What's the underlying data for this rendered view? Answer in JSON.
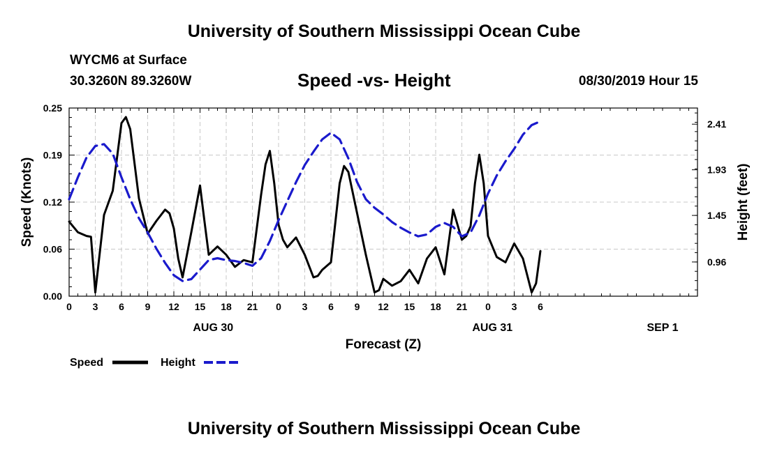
{
  "page": {
    "title_top": "University of Southern Mississippi Ocean Cube",
    "title_bottom": "University of Southern Mississippi Ocean Cube",
    "station": "WYCM6 at Surface",
    "location": "30.3260N 89.3260W",
    "chart_title": "Speed -vs- Height",
    "run_time": "08/30/2019 Hour 15"
  },
  "chart_data": {
    "type": "line",
    "title": "Speed -vs- Height",
    "xlabel": "Forecast (Z)",
    "ylabel": "Speed (Knots)",
    "y2label": "Height (feet)",
    "x_range": [
      0,
      72
    ],
    "ylim": [
      0,
      0.25
    ],
    "y2lim": [
      0.6,
      2.58
    ],
    "grid": true,
    "legend_position": "bottom-left",
    "x_tick_labels": [
      "0",
      "3",
      "6",
      "9",
      "12",
      "15",
      "18",
      "21",
      "0",
      "3",
      "6",
      "9",
      "12",
      "15",
      "18",
      "21",
      "0",
      "3",
      "6"
    ],
    "date_labels": [
      {
        "x": 16.5,
        "label": "AUG 30"
      },
      {
        "x": 48.5,
        "label": "AUG 31"
      },
      {
        "x": 68,
        "label": "SEP 1"
      }
    ],
    "y_ticks": [
      {
        "value": 0,
        "label": "0.00"
      },
      {
        "value": 0.0625,
        "label": "0.06"
      },
      {
        "value": 0.125,
        "label": "0.12"
      },
      {
        "value": 0.1875,
        "label": "0.19"
      },
      {
        "value": 0.25,
        "label": "0.25"
      }
    ],
    "y2_ticks": [
      {
        "value": 0.96,
        "label": "0.96"
      },
      {
        "value": 1.45,
        "label": "1.45"
      },
      {
        "value": 1.93,
        "label": "1.93"
      },
      {
        "value": 2.41,
        "label": "2.41"
      }
    ],
    "legend": [
      {
        "name": "Speed",
        "color": "#000000",
        "style": "solid"
      },
      {
        "name": "Height",
        "color": "#1a1acc",
        "style": "dashed"
      }
    ],
    "series": [
      {
        "name": "Speed",
        "axis": "left",
        "color": "#000000",
        "points": [
          [
            0,
            0.099
          ],
          [
            1,
            0.085
          ],
          [
            2,
            0.08
          ],
          [
            2.5,
            0.079
          ],
          [
            3,
            0.005
          ],
          [
            4,
            0.108
          ],
          [
            5,
            0.14
          ],
          [
            6,
            0.23
          ],
          [
            6.5,
            0.238
          ],
          [
            7,
            0.222
          ],
          [
            8,
            0.13
          ],
          [
            9,
            0.083
          ],
          [
            10,
            0.1
          ],
          [
            11,
            0.115
          ],
          [
            11.5,
            0.11
          ],
          [
            12,
            0.09
          ],
          [
            12.5,
            0.05
          ],
          [
            13,
            0.025
          ],
          [
            14,
            0.085
          ],
          [
            15,
            0.147
          ],
          [
            15.5,
            0.1
          ],
          [
            16,
            0.055
          ],
          [
            17,
            0.066
          ],
          [
            18,
            0.055
          ],
          [
            19,
            0.039
          ],
          [
            20,
            0.048
          ],
          [
            21,
            0.045
          ],
          [
            22,
            0.135
          ],
          [
            22.5,
            0.175
          ],
          [
            23,
            0.193
          ],
          [
            23.5,
            0.15
          ],
          [
            24,
            0.095
          ],
          [
            24.5,
            0.075
          ],
          [
            25,
            0.065
          ],
          [
            26,
            0.078
          ],
          [
            27,
            0.055
          ],
          [
            28,
            0.025
          ],
          [
            28.5,
            0.027
          ],
          [
            29,
            0.035
          ],
          [
            30,
            0.045
          ],
          [
            31,
            0.15
          ],
          [
            31.5,
            0.173
          ],
          [
            32,
            0.165
          ],
          [
            33,
            0.11
          ],
          [
            34,
            0.055
          ],
          [
            35,
            0.005
          ],
          [
            35.5,
            0.008
          ],
          [
            36,
            0.023
          ],
          [
            37,
            0.014
          ],
          [
            38,
            0.02
          ],
          [
            39,
            0.035
          ],
          [
            40,
            0.017
          ],
          [
            41,
            0.05
          ],
          [
            42,
            0.065
          ],
          [
            43,
            0.029
          ],
          [
            44,
            0.115
          ],
          [
            45,
            0.075
          ],
          [
            45.5,
            0.08
          ],
          [
            46,
            0.093
          ],
          [
            46.5,
            0.15
          ],
          [
            47,
            0.188
          ],
          [
            47.5,
            0.15
          ],
          [
            48,
            0.08
          ],
          [
            49,
            0.052
          ],
          [
            50,
            0.045
          ],
          [
            51,
            0.07
          ],
          [
            52,
            0.05
          ],
          [
            53,
            0.005
          ],
          [
            53.5,
            0.017
          ],
          [
            54,
            0.06
          ]
        ]
      },
      {
        "name": "Height",
        "axis": "right",
        "color": "#1a1acc",
        "points": [
          [
            0,
            1.62
          ],
          [
            1,
            1.85
          ],
          [
            2,
            2.06
          ],
          [
            3,
            2.18
          ],
          [
            4,
            2.2
          ],
          [
            5,
            2.1
          ],
          [
            6,
            1.85
          ],
          [
            7,
            1.62
          ],
          [
            8,
            1.42
          ],
          [
            9,
            1.27
          ],
          [
            10,
            1.1
          ],
          [
            11,
            0.95
          ],
          [
            12,
            0.82
          ],
          [
            13,
            0.76
          ],
          [
            14,
            0.78
          ],
          [
            15,
            0.88
          ],
          [
            16,
            0.98
          ],
          [
            17,
            1.0
          ],
          [
            18,
            0.98
          ],
          [
            19,
            0.97
          ],
          [
            20,
            0.95
          ],
          [
            21,
            0.92
          ],
          [
            22,
            1.0
          ],
          [
            23,
            1.18
          ],
          [
            24,
            1.4
          ],
          [
            25,
            1.6
          ],
          [
            26,
            1.8
          ],
          [
            27,
            1.98
          ],
          [
            28,
            2.12
          ],
          [
            29,
            2.25
          ],
          [
            30,
            2.32
          ],
          [
            31,
            2.25
          ],
          [
            32,
            2.05
          ],
          [
            33,
            1.8
          ],
          [
            34,
            1.62
          ],
          [
            35,
            1.53
          ],
          [
            36,
            1.46
          ],
          [
            37,
            1.38
          ],
          [
            38,
            1.32
          ],
          [
            39,
            1.27
          ],
          [
            40,
            1.23
          ],
          [
            41,
            1.25
          ],
          [
            42,
            1.33
          ],
          [
            43,
            1.37
          ],
          [
            44,
            1.33
          ],
          [
            45,
            1.23
          ],
          [
            46,
            1.27
          ],
          [
            47,
            1.45
          ],
          [
            48,
            1.68
          ],
          [
            49,
            1.87
          ],
          [
            50,
            2.02
          ],
          [
            51,
            2.15
          ],
          [
            52,
            2.3
          ],
          [
            53,
            2.4
          ],
          [
            54,
            2.44
          ]
        ]
      }
    ]
  }
}
